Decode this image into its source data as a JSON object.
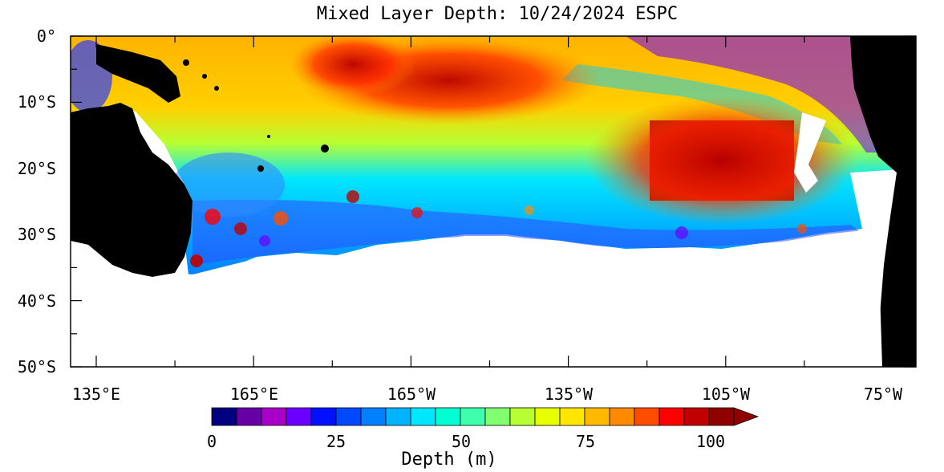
{
  "figure": {
    "title": "Mixed Layer Depth: 10/24/2024 ESPC",
    "lat_labels": [
      "0°",
      "10°S",
      "20°S",
      "30°S",
      "40°S",
      "50°S"
    ],
    "lon_labels": [
      "135°E",
      "165°E",
      "165°W",
      "135°W",
      "105°W",
      "75°W"
    ],
    "colorbar": {
      "title": "Depth (m)",
      "tick_labels": [
        "0",
        "25",
        "50",
        "75",
        "100"
      ],
      "colors": [
        "#000080",
        "#6600a6",
        "#a800c9",
        "#6a00ff",
        "#0011ff",
        "#0049ff",
        "#007fff",
        "#00b4ff",
        "#00e6ff",
        "#00ffd3",
        "#3dffad",
        "#80ff71",
        "#b7ff33",
        "#e8ff00",
        "#ffe500",
        "#ffb900",
        "#ff8a00",
        "#ff4d00",
        "#ff0000",
        "#c10000",
        "#8f0000"
      ]
    }
  },
  "chart_data": {
    "type": "heatmap",
    "title": "Mixed Layer Depth: 10/24/2024 ESPC",
    "xlabel": "",
    "ylabel": "",
    "colorbar_label": "Depth (m)",
    "xlim": [
      "125°E",
      "70°W"
    ],
    "ylim": [
      "50°S",
      "0°"
    ],
    "vmin": 0,
    "vmax": 100,
    "lat_ticks": [
      "0°",
      "10°S",
      "20°S",
      "30°S",
      "40°S",
      "50°S"
    ],
    "lon_ticks": [
      "135°E",
      "165°E",
      "165°W",
      "135°W",
      "105°W",
      "75°W"
    ],
    "colorbar_ticks": [
      0,
      25,
      50,
      75,
      100
    ]
  }
}
